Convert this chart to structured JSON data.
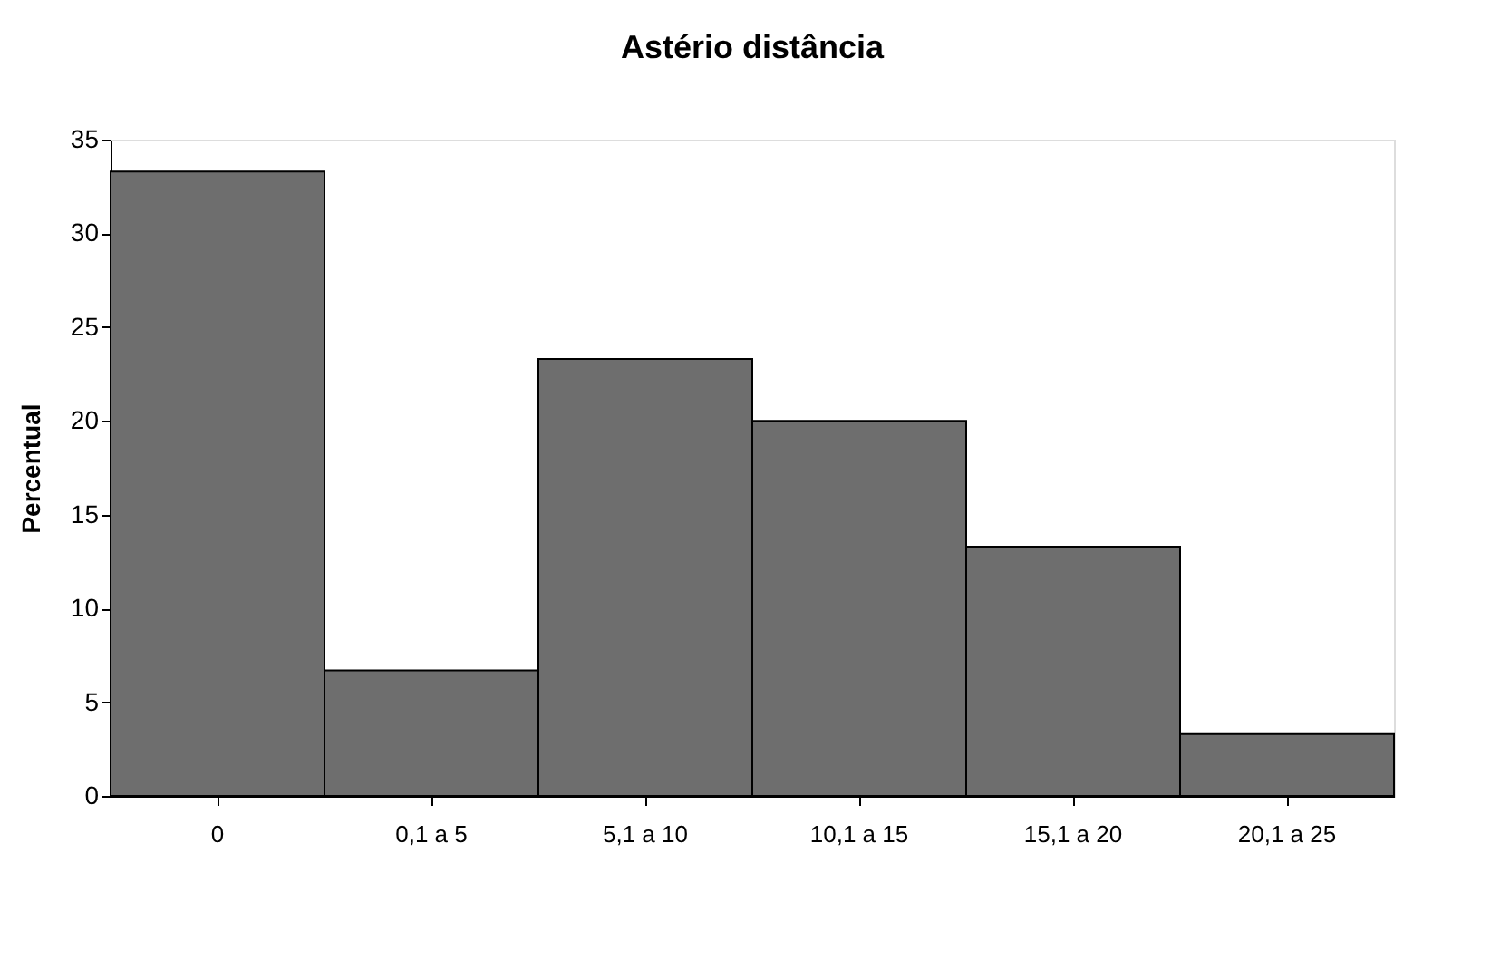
{
  "chart_data": {
    "type": "bar",
    "title": "Astério   distância",
    "ylabel": "Percentual",
    "categories": [
      "0",
      "0,1 a 5",
      "5,1 a 10",
      "10,1 a 15",
      "15,1 a 20",
      "20,1 a 25"
    ],
    "values": [
      33.3,
      6.7,
      23.3,
      20,
      13.3,
      3.3
    ],
    "color": "#6e6e6e",
    "ylim": [
      0,
      35
    ],
    "yticks": [
      0,
      5,
      10,
      15,
      20,
      25,
      30,
      35
    ],
    "grid": false
  }
}
